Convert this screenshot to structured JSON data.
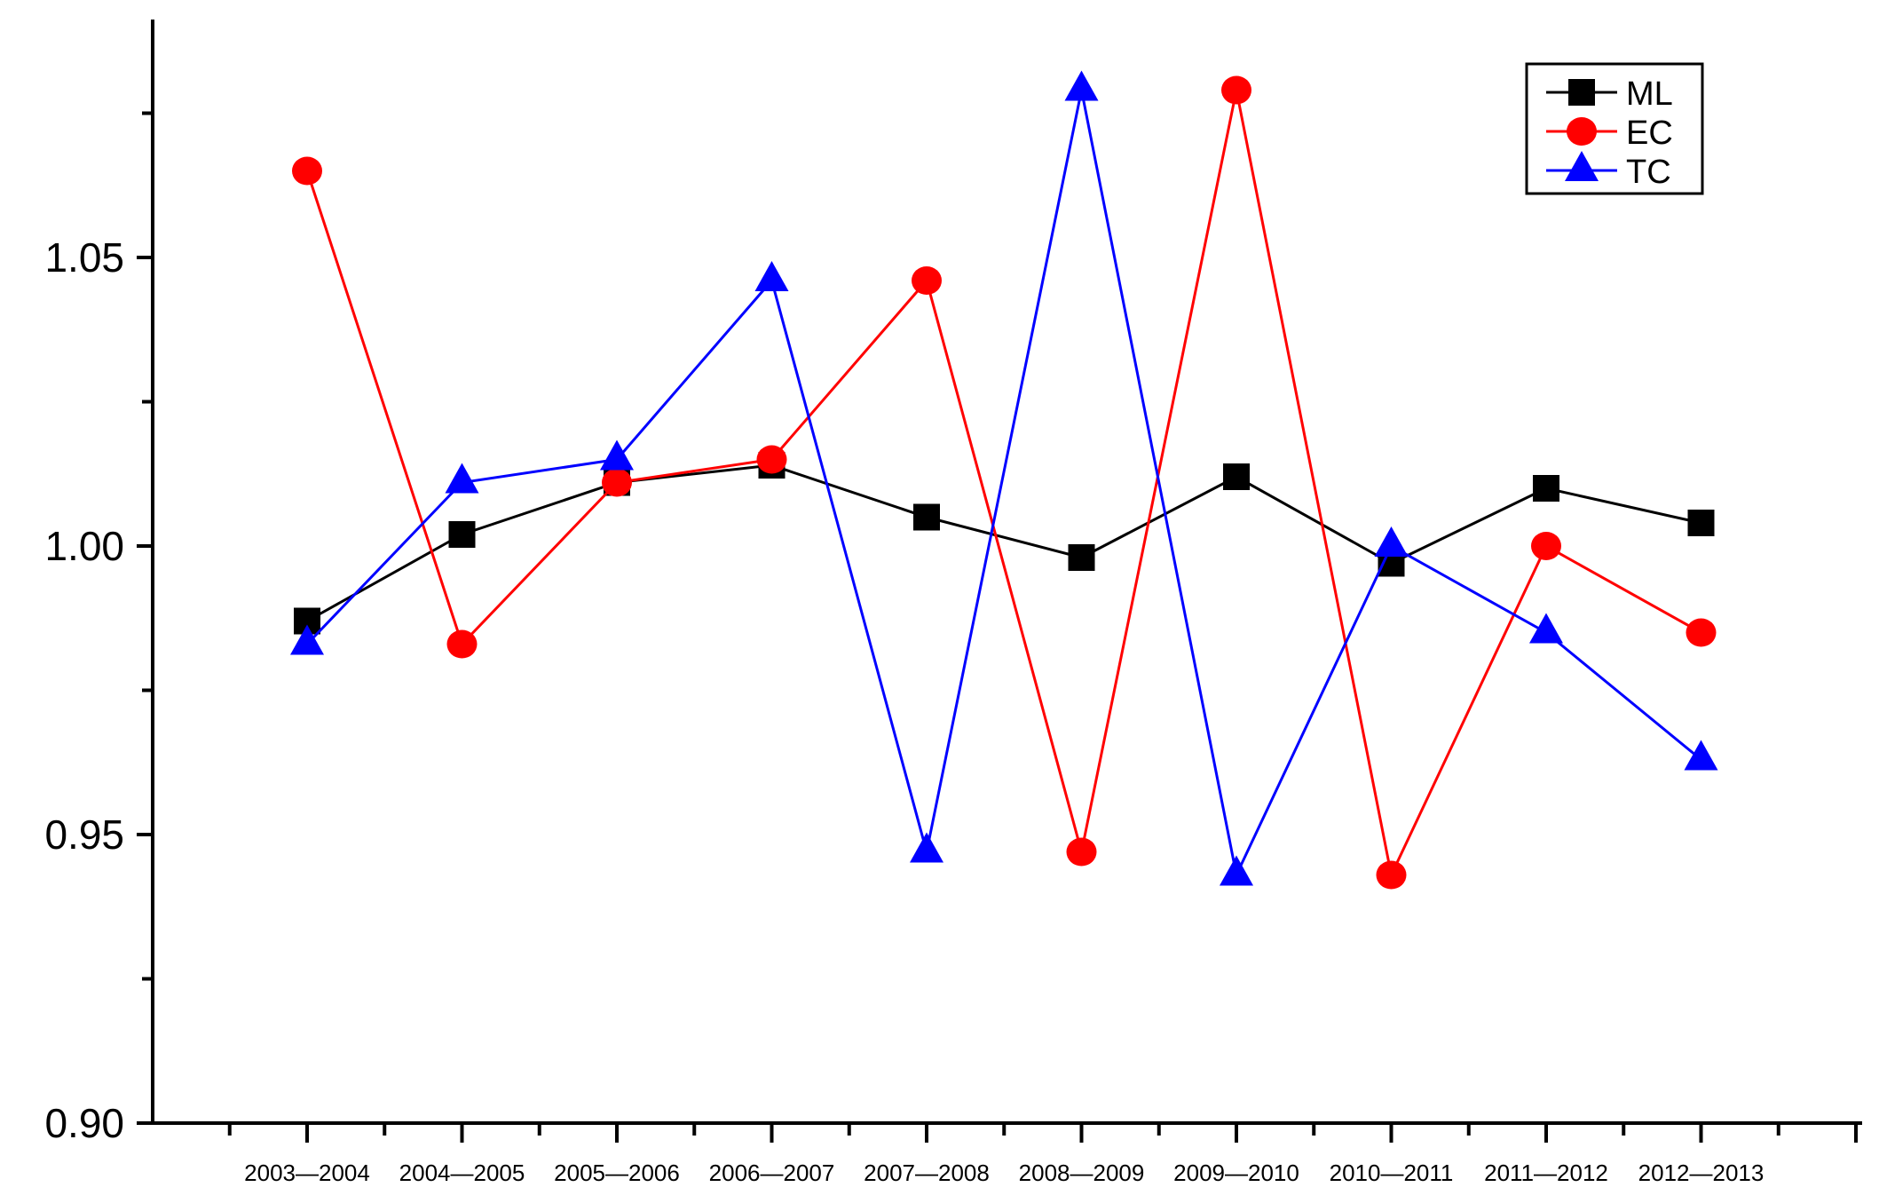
{
  "chart_data": {
    "type": "line",
    "title": "",
    "xlabel": "",
    "ylabel": "",
    "categories": [
      "2003—2004",
      "2004—2005",
      "2005—2006",
      "2006—2007",
      "2007—2008",
      "2008—2009",
      "2009—2010",
      "2010—2011",
      "2011—2012",
      "2012—2013"
    ],
    "ylim": [
      0.9,
      1.09
    ],
    "yticks_major": [
      "0.90",
      "0.95",
      "1.00",
      "1.05"
    ],
    "grid": false,
    "legend_position": "top-right",
    "series": [
      {
        "name": "ML",
        "marker": "square",
        "color": "#000000",
        "values": [
          0.987,
          1.002,
          1.011,
          1.014,
          1.005,
          0.998,
          1.012,
          0.997,
          1.01,
          1.004
        ]
      },
      {
        "name": "EC",
        "marker": "circle",
        "color": "#ff0000",
        "values": [
          1.065,
          0.983,
          1.011,
          1.015,
          1.046,
          0.947,
          1.079,
          0.943,
          1.0,
          0.985
        ]
      },
      {
        "name": "TC",
        "marker": "triangle",
        "color": "#0000ff",
        "values": [
          0.983,
          1.011,
          1.015,
          1.046,
          0.947,
          1.079,
          0.943,
          1.0,
          0.985,
          0.963
        ]
      }
    ]
  }
}
